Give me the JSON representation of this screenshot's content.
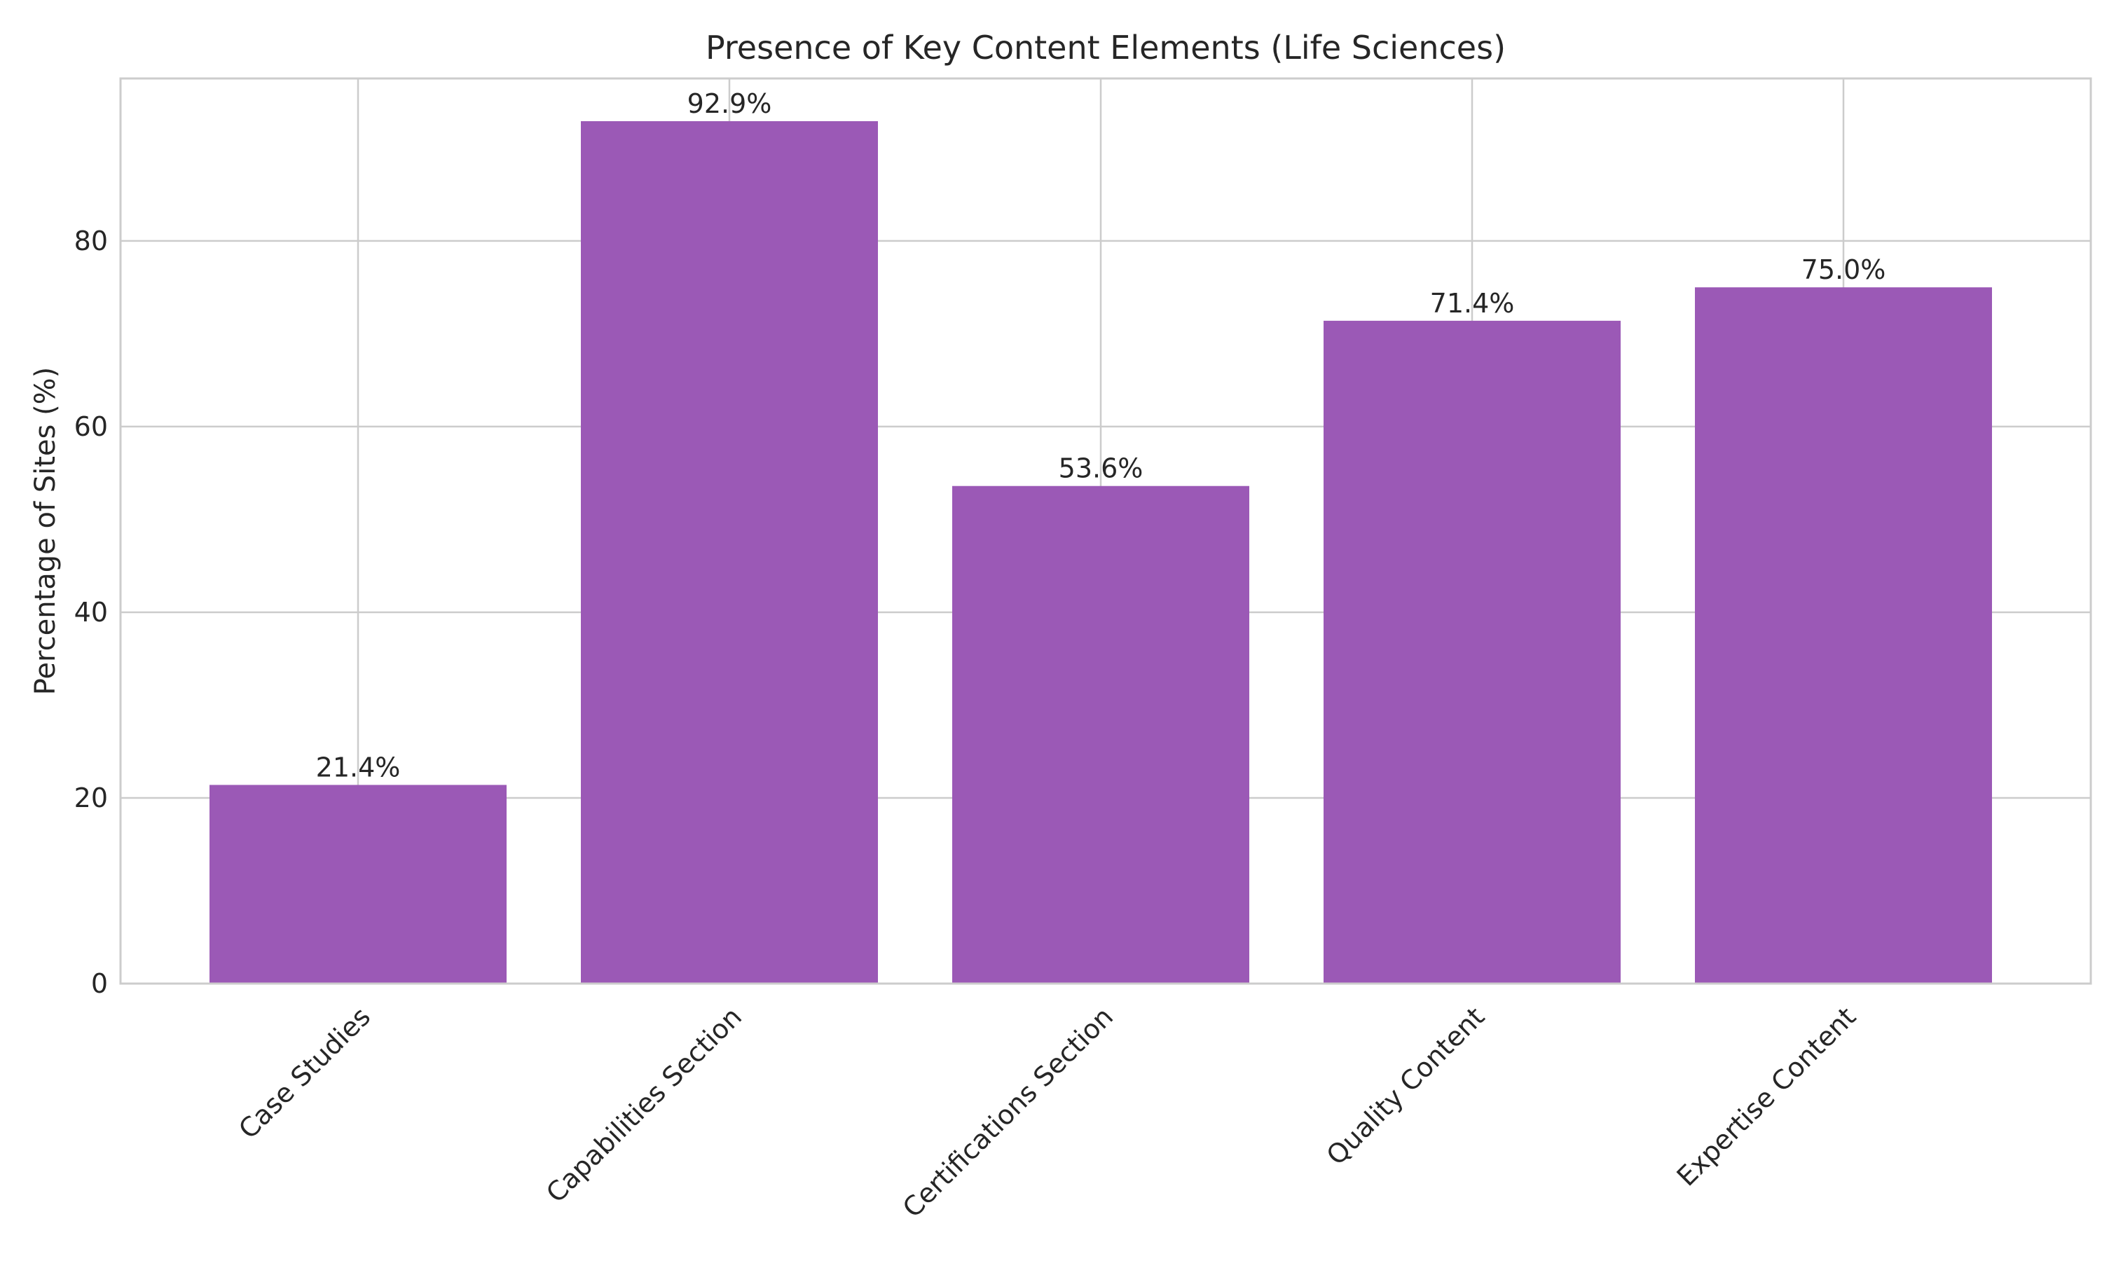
{
  "chart_data": {
    "type": "bar",
    "title": "Presence of Key Content Elements (Life Sciences)",
    "xlabel": "",
    "ylabel": "Percentage of Sites (%)",
    "categories": [
      "Case Studies",
      "Capabilities Section",
      "Certifications Section",
      "Quality Content",
      "Expertise Content"
    ],
    "values": [
      21.4,
      92.9,
      53.6,
      71.4,
      75.0
    ],
    "data_labels": [
      "21.4%",
      "92.9%",
      "53.6%",
      "71.4%",
      "75.0%"
    ],
    "ylim": [
      0,
      97.5
    ],
    "yticks": [
      0,
      20,
      40,
      60,
      80
    ],
    "grid": true,
    "bar_color": "#9b59b6"
  }
}
